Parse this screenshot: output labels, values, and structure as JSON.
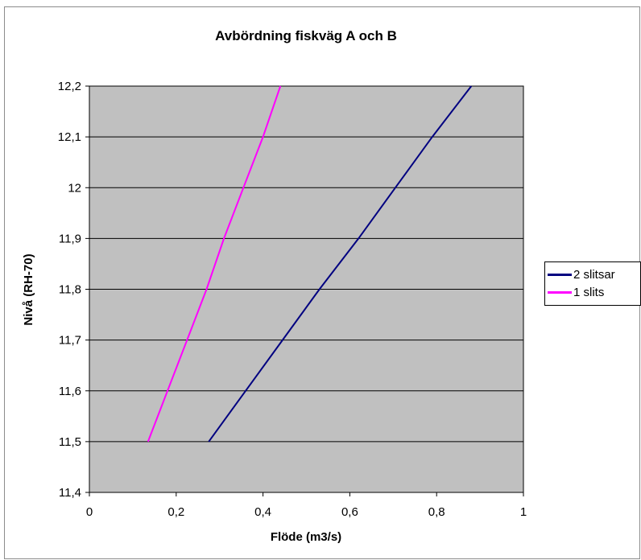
{
  "chart_data": {
    "type": "line",
    "title": "Avbördning fiskväg A och B",
    "xlabel": "Flöde (m3/s)",
    "ylabel": "Nivå (RH-70)",
    "xlim": [
      0,
      1
    ],
    "ylim": [
      11.4,
      12.2
    ],
    "xticks": [
      "0",
      "0,2",
      "0,4",
      "0,6",
      "0,8",
      "1"
    ],
    "yticks": [
      "11,4",
      "11,5",
      "11,6",
      "11,7",
      "11,8",
      "11,9",
      "12",
      "12,1",
      "12,2"
    ],
    "grid": "horizontal",
    "legend_position": "right",
    "plot_background": "#c0c0c0",
    "series": [
      {
        "name": "2 slitsar",
        "color": "#000080",
        "x": [
          0.275,
          0.36,
          0.445,
          0.53,
          0.62,
          0.705,
          0.79,
          0.88
        ],
        "y": [
          11.5,
          11.6,
          11.7,
          11.8,
          11.9,
          12.0,
          12.1,
          12.2
        ]
      },
      {
        "name": "1 slits",
        "color": "#ff00ff",
        "x": [
          0.135,
          0.18,
          0.225,
          0.27,
          0.31,
          0.355,
          0.4,
          0.44
        ],
        "y": [
          11.5,
          11.6,
          11.7,
          11.8,
          11.9,
          12.0,
          12.1,
          12.2
        ]
      }
    ]
  }
}
